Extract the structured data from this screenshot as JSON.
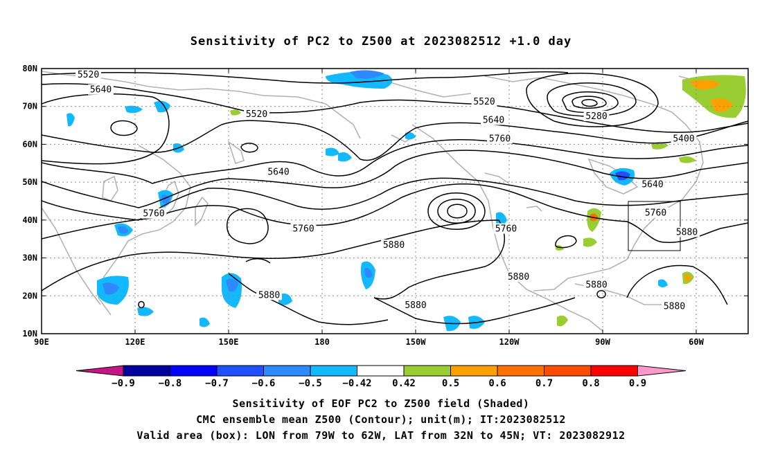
{
  "title": "Sensitivity of PC2 to Z500 at 2023082512 +1.0 day",
  "lat_labels": [
    "80N",
    "70N",
    "60N",
    "50N",
    "40N",
    "30N",
    "20N",
    "10N"
  ],
  "lon_labels": [
    "90E",
    "120E",
    "150E",
    "180",
    "150W",
    "120W",
    "90W",
    "60W"
  ],
  "contour_labels": [
    {
      "text": "5520",
      "lon": 105,
      "lat": 78.2
    },
    {
      "text": "5640",
      "lon": 109,
      "lat": 74.2
    },
    {
      "text": "5520",
      "lon": 159,
      "lat": 67.8
    },
    {
      "text": "5640",
      "lon": 166,
      "lat": 52.5
    },
    {
      "text": "5760",
      "lon": 126,
      "lat": 41.5
    },
    {
      "text": "5760",
      "lon": 174,
      "lat": 37.5
    },
    {
      "text": "5880",
      "lon": -157,
      "lat": 33.2
    },
    {
      "text": "5880",
      "lon": 163,
      "lat": 20.0
    },
    {
      "text": "5880",
      "lon": -150,
      "lat": 17.3
    },
    {
      "text": "5520",
      "lon": -128,
      "lat": 71.0
    },
    {
      "text": "5640",
      "lon": -125,
      "lat": 66.2
    },
    {
      "text": "5760",
      "lon": -123,
      "lat": 61.3
    },
    {
      "text": "5760",
      "lon": -121,
      "lat": 37.5
    },
    {
      "text": "5880",
      "lon": -117,
      "lat": 24.8
    },
    {
      "text": "5280",
      "lon": -92,
      "lat": 67.2
    },
    {
      "text": "5400",
      "lon": -64,
      "lat": 61.3
    },
    {
      "text": "5640",
      "lon": -74,
      "lat": 49.2
    },
    {
      "text": "5760",
      "lon": -73,
      "lat": 41.7
    },
    {
      "text": "5880",
      "lon": -63,
      "lat": 36.6
    },
    {
      "text": "5880",
      "lon": -92,
      "lat": 22.7
    },
    {
      "text": "5880",
      "lon": -67,
      "lat": 17.0
    }
  ],
  "valid_box": {
    "lon_min": -79,
    "lon_max": -62,
    "lat_min": 32,
    "lat_max": 45
  },
  "colorbar": {
    "labels": [
      "-0.9",
      "-0.8",
      "-0.7",
      "-0.6",
      "-0.5",
      "-0.42",
      "0.42",
      "0.5",
      "0.6",
      "0.7",
      "0.8",
      "0.9"
    ],
    "colors": [
      "#00009e",
      "#0000ff",
      "#1f4fff",
      "#2e88ff",
      "#12b9ff",
      "#ffffff",
      "#9acd32",
      "#ff9f00",
      "#ff7000",
      "#ff4c00",
      "#ff0000"
    ],
    "low_extend_color": "#c71585",
    "high_extend_color": "#ff99cc"
  },
  "footer": {
    "line1": "Sensitivity of EOF PC2 to Z500 field (Shaded)",
    "line2": "CMC ensemble mean Z500 (Contour); unit(m); IT:2023082512",
    "line3": "Valid area (box): LON from 79W to 62W, LAT from 32N to 45N; VT: 2023082912"
  }
}
